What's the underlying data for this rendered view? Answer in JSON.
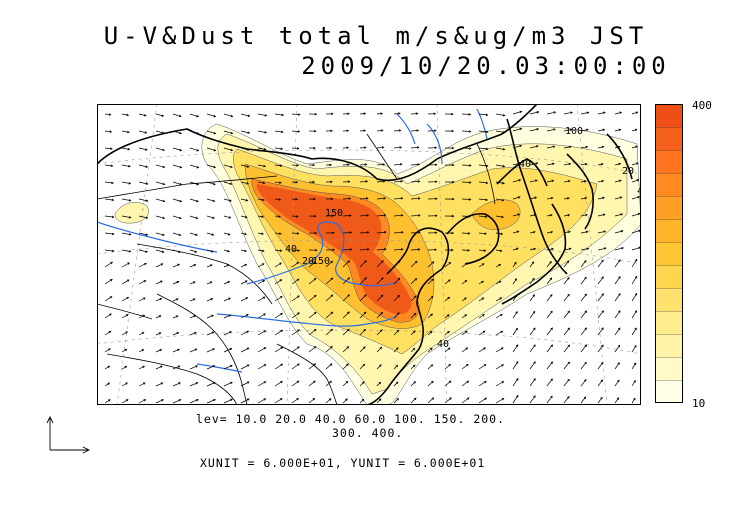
{
  "title": {
    "line1": "U-V&Dust total m/s&ug/m3 JST",
    "line2": "2009/10/20.03:00:00"
  },
  "colorbar": {
    "max_label": "400",
    "min_label": "10",
    "colors": [
      "#ffffe8",
      "#fffac8",
      "#fff3a8",
      "#ffec8c",
      "#ffe170",
      "#ffd44f",
      "#ffc634",
      "#ffb42a",
      "#ff9f26",
      "#ff8a22",
      "#ff741e",
      "#f5601a",
      "#ee4f15"
    ]
  },
  "levels": {
    "line1": "lev= 10.0 20.0 40.0 60.0 100. 150. 200.",
    "line2": "300. 400."
  },
  "units_text": "XUNIT = 6.000E+01, YUNIT = 6.000E+01",
  "contour_labels": [
    "150",
    "20",
    "40",
    "150",
    "40",
    "40",
    "100",
    "20",
    "40"
  ],
  "palette": {
    "coast": "#000000",
    "river": "#2a6de0",
    "border": "#000000",
    "graticule": "#888888"
  }
}
